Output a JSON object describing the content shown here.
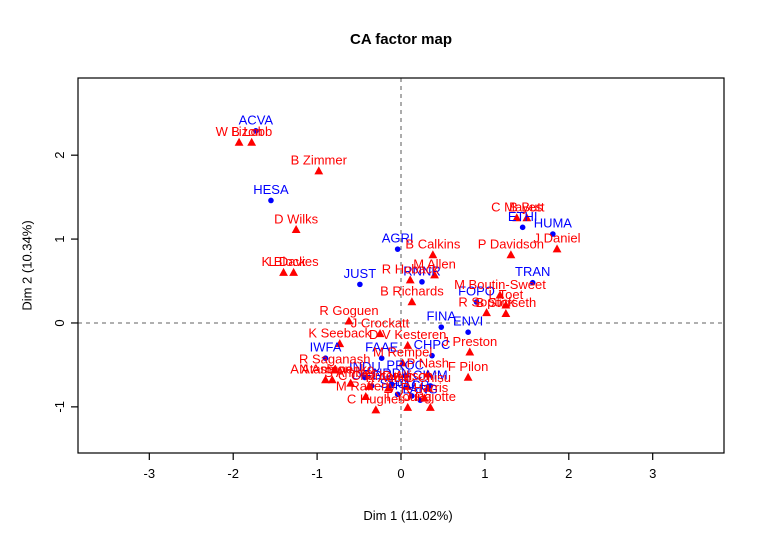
{
  "chart_data": {
    "type": "scatter",
    "title": "CA factor map",
    "xlabel": "Dim 1 (11.02%)",
    "ylabel": "Dim 2 (10.34%)",
    "xlim": [
      -3.85,
      3.85
    ],
    "ylim": [
      -1.55,
      2.92
    ],
    "x_ticks": [
      -3,
      -2,
      -1,
      0,
      1,
      2,
      3
    ],
    "y_ticks": [
      -1,
      0,
      1,
      2
    ],
    "grid": "off",
    "reference_lines": {
      "v_at_x": 0,
      "h_at_y": 0,
      "style": "dashed",
      "color": "#808080"
    },
    "legend": "none",
    "series": [
      {
        "name": "committee",
        "marker": "circle",
        "color": "#0000ff",
        "points": [
          {
            "label": "ACVA",
            "x": -1.73,
            "y": 2.29
          },
          {
            "label": "HESA",
            "x": -1.55,
            "y": 1.46
          },
          {
            "label": "JUST",
            "x": -0.49,
            "y": 0.46
          },
          {
            "label": "AGRI",
            "x": -0.04,
            "y": 0.88
          },
          {
            "label": "ETHI",
            "x": 1.45,
            "y": 1.14
          },
          {
            "label": "HUMA",
            "x": 1.81,
            "y": 1.06
          },
          {
            "label": "TRAN",
            "x": 1.57,
            "y": 0.48
          },
          {
            "label": "RNNR",
            "x": 0.25,
            "y": 0.49
          },
          {
            "label": "FOPO",
            "x": 0.9,
            "y": 0.25
          },
          {
            "label": "FINA",
            "x": 0.48,
            "y": -0.05
          },
          {
            "label": "ENVI",
            "x": 0.8,
            "y": -0.11
          },
          {
            "label": "IWFA",
            "x": -0.9,
            "y": -0.42
          },
          {
            "label": "FAAE",
            "x": -0.23,
            "y": -0.42
          },
          {
            "label": "CHPC",
            "x": 0.37,
            "y": -0.39
          },
          {
            "label": "PROC",
            "x": 0.05,
            "y": -0.63
          },
          {
            "label": "INDU",
            "x": -0.43,
            "y": -0.65
          },
          {
            "label": "NDDN",
            "x": -0.11,
            "y": -0.73
          },
          {
            "label": "OGGO",
            "x": -0.35,
            "y": -0.75
          },
          {
            "label": "CIMM",
            "x": 0.35,
            "y": -0.75
          },
          {
            "label": "SECU",
            "x": -0.04,
            "y": -0.85
          },
          {
            "label": "PACP",
            "x": 0.13,
            "y": -0.87
          },
          {
            "label": "LANG",
            "x": 0.23,
            "y": -0.92
          }
        ]
      },
      {
        "name": "member",
        "marker": "triangle",
        "color": "#ff0000",
        "points": [
          {
            "label": "W Lizon",
            "x": -1.93,
            "y": 2.15
          },
          {
            "label": "B Lobb",
            "x": -1.78,
            "y": 2.15
          },
          {
            "label": "B Zimmer",
            "x": -0.98,
            "y": 1.81
          },
          {
            "label": "D Wilks",
            "x": -1.25,
            "y": 1.11
          },
          {
            "label": "K Block",
            "x": -1.4,
            "y": 0.6
          },
          {
            "label": "L Davies",
            "x": -1.28,
            "y": 0.6
          },
          {
            "label": "C Mayes",
            "x": 1.38,
            "y": 1.25
          },
          {
            "label": "B Butt",
            "x": 1.5,
            "y": 1.25
          },
          {
            "label": "J Daniel",
            "x": 1.86,
            "y": 0.88
          },
          {
            "label": "B Calkins",
            "x": 0.38,
            "y": 0.81
          },
          {
            "label": "P Davidson",
            "x": 1.31,
            "y": 0.81
          },
          {
            "label": "M Allen",
            "x": 0.4,
            "y": 0.57
          },
          {
            "label": "R Hoback",
            "x": 0.11,
            "y": 0.51
          },
          {
            "label": "M Boutin-Sweet",
            "x": 1.18,
            "y": 0.33
          },
          {
            "label": "L Toet",
            "x": 1.25,
            "y": 0.21
          },
          {
            "label": "R Sopuck",
            "x": 1.02,
            "y": 0.12
          },
          {
            "label": "B Storseth",
            "x": 1.25,
            "y": 0.11
          },
          {
            "label": "B Richards",
            "x": 0.13,
            "y": 0.25
          },
          {
            "label": "R Goguen",
            "x": -0.62,
            "y": 0.02
          },
          {
            "label": "J Crockatt",
            "x": -0.25,
            "y": -0.13
          },
          {
            "label": "K Seeback",
            "x": -0.73,
            "y": -0.25
          },
          {
            "label": "D V Kesteren",
            "x": 0.08,
            "y": -0.27
          },
          {
            "label": "J Preston",
            "x": 0.82,
            "y": -0.35
          },
          {
            "label": "M Rempel",
            "x": 0.02,
            "y": -0.48
          },
          {
            "label": "R Saganash",
            "x": -0.79,
            "y": -0.56
          },
          {
            "label": "N Ashton",
            "x": -0.9,
            "y": -0.68
          },
          {
            "label": "A Atamanenko",
            "x": -0.82,
            "y": -0.68
          },
          {
            "label": "P Nash",
            "x": 0.32,
            "y": -0.61
          },
          {
            "label": "F Pilon",
            "x": 0.8,
            "y": -0.65
          },
          {
            "label": "S Ambler",
            "x": -0.6,
            "y": -0.72
          },
          {
            "label": "C Charlton",
            "x": -0.38,
            "y": -0.76
          },
          {
            "label": "R Aubin",
            "x": -0.15,
            "y": -0.78
          },
          {
            "label": "D Allison",
            "x": 0.08,
            "y": -0.76
          },
          {
            "label": "C Chisu",
            "x": 0.32,
            "y": -0.78
          },
          {
            "label": "M Rafferty",
            "x": -0.42,
            "y": -0.88
          },
          {
            "label": "R Harris",
            "x": 0.28,
            "y": -0.9
          },
          {
            "label": "C Hughes",
            "x": -0.3,
            "y": -1.04
          },
          {
            "label": "T Young",
            "x": 0.08,
            "y": -1.01
          },
          {
            "label": "J Rajotte",
            "x": 0.35,
            "y": -1.01
          }
        ]
      }
    ]
  }
}
